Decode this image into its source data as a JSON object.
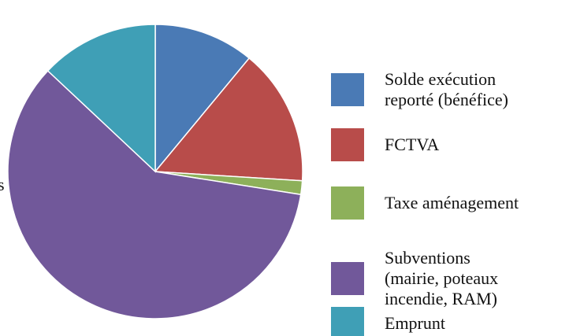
{
  "chart_data": {
    "type": "pie",
    "categories": [
      "Solde exécution reporté (bénéfice)",
      "FCTVA",
      "Taxe aménagement",
      "Subventions (mairie, poteaux incendie, RAM)",
      "Emprunt"
    ],
    "values": [
      11,
      15,
      1.5,
      59.5,
      13
    ],
    "colors": [
      "#4a7ab5",
      "#b84c4a",
      "#8db05a",
      "#71589a",
      "#3f9fb6"
    ],
    "annotations": [
      "s"
    ]
  }
}
